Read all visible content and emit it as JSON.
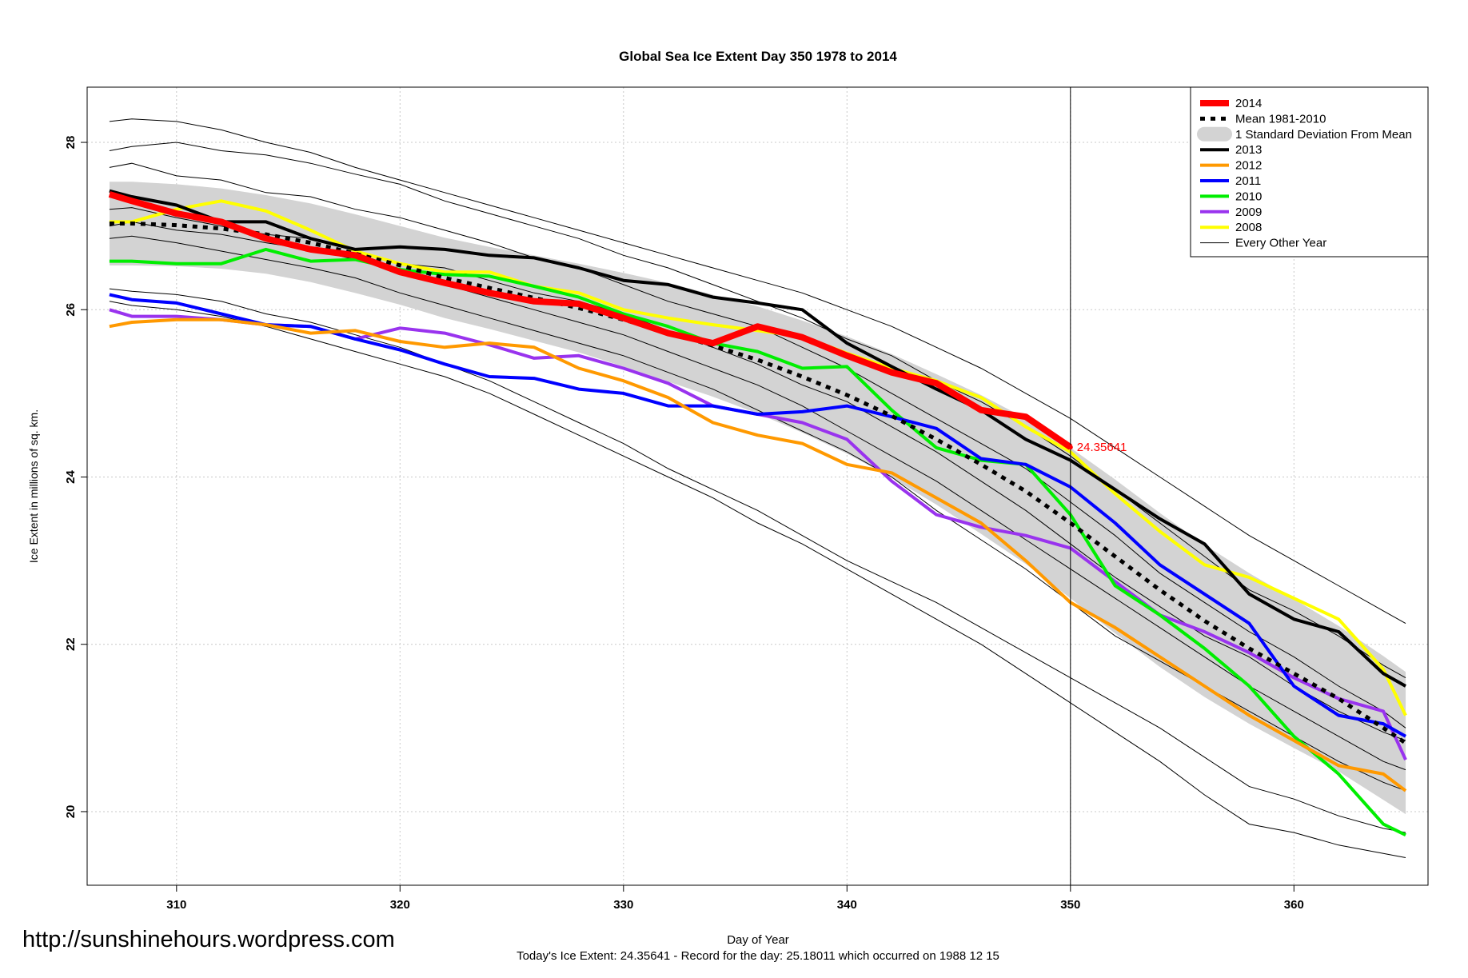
{
  "chart_data": {
    "type": "line",
    "title": "Global Sea Ice Extent Day 350 1978 to 2014",
    "x_label": "Day of Year",
    "y_label": "Ice Extent in millions of sq. km.",
    "footer": "Today's Ice Extent: 24.35641  - Record for the day: 25.18011 which occurred on 1988 12 15",
    "watermark": "http://sunshinehours.wordpress.com",
    "xlim": [
      306.0,
      366.0
    ],
    "ylim": [
      19.12,
      28.66
    ],
    "xticks": [
      310,
      320,
      330,
      340,
      350,
      360
    ],
    "yticks": [
      20,
      22,
      24,
      26,
      28
    ],
    "grid": true,
    "legend": "top-right",
    "vline": 350,
    "annotation": {
      "text": "24.35641",
      "x": 350,
      "y": 24.35641,
      "color": "#ff0000"
    },
    "x": [
      307,
      308,
      310,
      312,
      314,
      316,
      318,
      320,
      322,
      324,
      326,
      328,
      330,
      332,
      334,
      336,
      338,
      340,
      342,
      344,
      346,
      348,
      350,
      352,
      354,
      356,
      358,
      360,
      362,
      364,
      365
    ],
    "band": {
      "name": "1 Standard Deviation From Mean",
      "color": "#d3d3d3",
      "upper": [
        27.53,
        27.53,
        27.5,
        27.45,
        27.37,
        27.27,
        27.14,
        27.0,
        26.86,
        26.75,
        26.65,
        26.55,
        26.44,
        26.32,
        26.18,
        26.04,
        25.87,
        25.68,
        25.47,
        25.23,
        24.98,
        24.7,
        24.35,
        23.97,
        23.57,
        23.19,
        22.85,
        22.54,
        22.22,
        21.86,
        21.67
      ],
      "lower": [
        26.53,
        26.53,
        26.52,
        26.49,
        26.43,
        26.33,
        26.2,
        26.06,
        25.9,
        25.77,
        25.63,
        25.49,
        25.32,
        25.14,
        24.96,
        24.76,
        24.53,
        24.28,
        23.99,
        23.67,
        23.32,
        22.96,
        22.55,
        22.13,
        21.73,
        21.37,
        21.05,
        20.76,
        20.48,
        20.14,
        19.97
      ]
    },
    "other_years": {
      "name": "Every Other Year",
      "color": "#000000",
      "line_width": 1,
      "lines": [
        [
          28.25,
          28.28,
          28.25,
          28.15,
          28.0,
          27.88,
          27.7,
          27.55,
          27.4,
          27.25,
          27.1,
          26.95,
          26.8,
          26.65,
          26.5,
          26.35,
          26.2,
          26.0,
          25.8,
          25.55,
          25.3,
          25.0,
          24.7,
          24.35,
          24.0,
          23.65,
          23.3,
          23.0,
          22.7,
          22.4,
          22.25
        ],
        [
          27.9,
          27.95,
          28.0,
          27.9,
          27.85,
          27.75,
          27.62,
          27.5,
          27.3,
          27.15,
          27.0,
          26.85,
          26.65,
          26.5,
          26.3,
          26.1,
          25.9,
          25.65,
          25.45,
          25.15,
          24.9,
          24.6,
          24.25,
          23.85,
          23.45,
          23.05,
          22.65,
          22.4,
          22.1,
          21.75,
          21.6
        ],
        [
          27.7,
          27.75,
          27.6,
          27.55,
          27.4,
          27.35,
          27.2,
          27.1,
          26.95,
          26.8,
          26.62,
          26.5,
          26.3,
          26.1,
          25.95,
          25.8,
          25.55,
          25.3,
          25.0,
          24.7,
          24.4,
          24.1,
          23.7,
          23.3,
          22.85,
          22.5,
          22.15,
          21.85,
          21.5,
          21.2,
          21.0
        ],
        [
          27.2,
          27.22,
          27.1,
          27.0,
          26.9,
          26.85,
          26.7,
          26.55,
          26.5,
          26.35,
          26.2,
          26.1,
          25.95,
          25.75,
          25.55,
          25.35,
          25.1,
          24.9,
          24.6,
          24.3,
          23.95,
          23.6,
          23.2,
          22.8,
          22.45,
          22.1,
          21.85,
          21.5,
          21.2,
          20.95,
          20.85
        ],
        [
          26.85,
          26.88,
          26.8,
          26.7,
          26.6,
          26.5,
          26.38,
          26.2,
          26.05,
          25.9,
          25.75,
          25.6,
          25.45,
          25.25,
          25.05,
          24.8,
          24.55,
          24.3,
          24.0,
          23.6,
          23.25,
          22.9,
          22.5,
          22.1,
          21.8,
          21.5,
          21.2,
          20.9,
          20.6,
          20.35,
          20.25
        ],
        [
          26.25,
          26.22,
          26.18,
          26.1,
          25.95,
          25.85,
          25.7,
          25.55,
          25.35,
          25.15,
          24.9,
          24.65,
          24.4,
          24.1,
          23.85,
          23.6,
          23.3,
          23.0,
          22.75,
          22.5,
          22.2,
          21.9,
          21.6,
          21.3,
          21.0,
          20.65,
          20.3,
          20.15,
          19.95,
          19.8,
          19.75
        ],
        [
          26.1,
          26.05,
          26.0,
          25.92,
          25.8,
          25.65,
          25.5,
          25.35,
          25.2,
          25.0,
          24.75,
          24.5,
          24.25,
          24.0,
          23.75,
          23.45,
          23.2,
          22.9,
          22.6,
          22.3,
          22.0,
          21.65,
          21.3,
          20.95,
          20.6,
          20.2,
          19.85,
          19.75,
          19.6,
          19.5,
          19.45
        ],
        [
          27.0,
          27.05,
          26.95,
          26.9,
          26.8,
          26.72,
          26.6,
          26.45,
          26.3,
          26.15,
          26.0,
          25.85,
          25.7,
          25.5,
          25.3,
          25.1,
          24.85,
          24.55,
          24.25,
          23.95,
          23.6,
          23.25,
          22.9,
          22.55,
          22.2,
          21.85,
          21.5,
          21.2,
          20.9,
          20.6,
          20.5
        ]
      ]
    },
    "series": [
      {
        "name": "2014",
        "color": "#ff0000",
        "line_width": 8,
        "values": [
          27.38,
          27.3,
          27.15,
          27.05,
          26.85,
          26.72,
          26.65,
          26.45,
          26.32,
          26.2,
          26.1,
          26.07,
          25.9,
          25.72,
          25.6,
          25.8,
          25.67,
          25.45,
          25.25,
          25.12,
          24.8,
          24.72,
          24.35641,
          null,
          null,
          null,
          null,
          null,
          null,
          null,
          null
        ]
      },
      {
        "name": "Mean 1981-2010",
        "color": "#000000",
        "line_width": 5,
        "dashed": true,
        "values": [
          27.03,
          27.03,
          27.01,
          26.97,
          26.9,
          26.8,
          26.67,
          26.53,
          26.38,
          26.26,
          26.14,
          26.02,
          25.88,
          25.73,
          25.57,
          25.4,
          25.2,
          24.98,
          24.73,
          24.45,
          24.15,
          23.83,
          23.45,
          23.05,
          22.65,
          22.28,
          21.95,
          21.65,
          21.35,
          21.0,
          20.82
        ]
      },
      {
        "name": "2013",
        "color": "#000000",
        "line_width": 4,
        "values": [
          27.42,
          27.35,
          27.25,
          27.05,
          27.05,
          26.85,
          26.72,
          26.75,
          26.72,
          26.65,
          26.62,
          26.5,
          26.35,
          26.3,
          26.15,
          26.08,
          26.0,
          25.6,
          25.32,
          25.05,
          24.8,
          24.45,
          24.2,
          23.85,
          23.5,
          23.2,
          22.6,
          22.3,
          22.15,
          21.65,
          21.5
        ]
      },
      {
        "name": "2012",
        "color": "#ff9900",
        "line_width": 4,
        "values": [
          25.8,
          25.85,
          25.88,
          25.88,
          25.82,
          25.72,
          25.75,
          25.62,
          25.55,
          25.6,
          25.55,
          25.3,
          25.15,
          24.95,
          24.65,
          24.5,
          24.4,
          24.15,
          24.05,
          23.75,
          23.45,
          23.0,
          22.5,
          22.2,
          21.85,
          21.5,
          21.15,
          20.85,
          20.55,
          20.45,
          20.25
        ]
      },
      {
        "name": "2011",
        "color": "#0000ff",
        "line_width": 4,
        "values": [
          26.18,
          26.12,
          26.08,
          25.95,
          25.82,
          25.8,
          25.65,
          25.52,
          25.35,
          25.2,
          25.18,
          25.05,
          25.0,
          24.85,
          24.85,
          24.75,
          24.78,
          24.85,
          24.72,
          24.58,
          24.22,
          24.15,
          23.88,
          23.45,
          22.95,
          22.6,
          22.25,
          21.5,
          21.15,
          21.05,
          20.9
        ]
      },
      {
        "name": "2010",
        "color": "#00ee00",
        "line_width": 4,
        "values": [
          26.58,
          26.58,
          26.55,
          26.55,
          26.72,
          26.58,
          26.6,
          26.48,
          26.42,
          26.4,
          26.28,
          26.15,
          25.95,
          25.8,
          25.6,
          25.5,
          25.3,
          25.32,
          24.8,
          24.35,
          24.2,
          24.15,
          23.55,
          22.7,
          22.35,
          21.95,
          21.5,
          20.9,
          20.45,
          19.85,
          19.72
        ]
      },
      {
        "name": "2009",
        "color": "#9933ee",
        "line_width": 4,
        "values": [
          26.0,
          25.92,
          25.92,
          25.88,
          25.82,
          25.8,
          25.65,
          25.78,
          25.72,
          25.58,
          25.42,
          25.45,
          25.3,
          25.12,
          24.85,
          24.75,
          24.65,
          24.45,
          23.95,
          23.55,
          23.4,
          23.3,
          23.15,
          22.75,
          22.35,
          22.15,
          21.9,
          21.6,
          21.35,
          21.2,
          20.62
        ]
      },
      {
        "name": "2008",
        "color": "#ffff00",
        "line_width": 4,
        "values": [
          27.05,
          27.05,
          27.2,
          27.3,
          27.18,
          26.95,
          26.7,
          26.55,
          26.45,
          26.45,
          26.28,
          26.2,
          26.0,
          25.9,
          25.82,
          25.75,
          25.68,
          25.48,
          25.3,
          25.15,
          24.95,
          24.6,
          24.3,
          23.8,
          23.35,
          22.95,
          22.8,
          22.55,
          22.3,
          21.7,
          21.15
        ]
      }
    ]
  }
}
